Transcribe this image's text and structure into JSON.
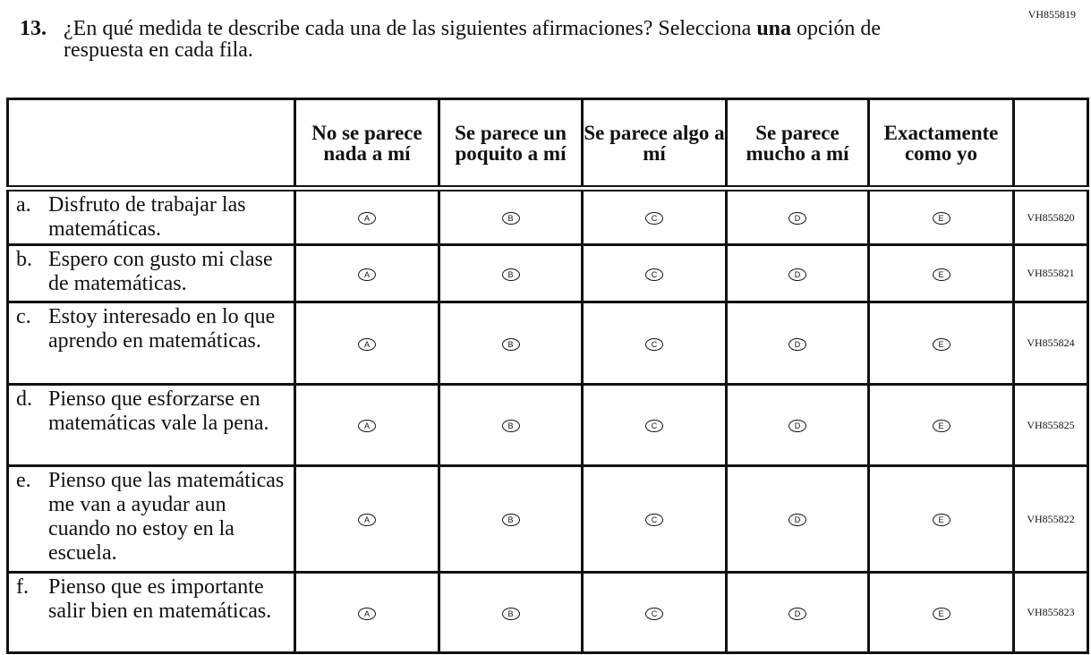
{
  "form_code": "VH855819",
  "question": {
    "number": "13.",
    "text_before": "¿En qué medida te describe cada una de las siguientes afirmaciones? Selecciona ",
    "text_bold": "una",
    "text_after": " opción de respuesta en cada fila."
  },
  "columns": [
    "No se parece nada a mí",
    "Se parece un poquito a mí",
    "Se parece algo a mí",
    "Se parece mucho a mí",
    "Exactamente como yo"
  ],
  "bubble_letters": [
    "A",
    "B",
    "C",
    "D",
    "E"
  ],
  "rows": [
    {
      "letter": "a.",
      "text": "Disfruto de trabajar las matemáticas.",
      "code": "VH855820"
    },
    {
      "letter": "b.",
      "text": "Espero con gusto mi clase de matemáticas.",
      "code": "VH855821"
    },
    {
      "letter": "c.",
      "text": "Estoy interesado en lo que aprendo en matemáticas.",
      "code": "VH855824"
    },
    {
      "letter": "d.",
      "text": "Pienso que esforzarse en matemáticas vale la pena.",
      "code": "VH855825"
    },
    {
      "letter": "e.",
      "text": "Pienso que las matemáticas me van a ayudar aun cuando no estoy en la escuela.",
      "code": "VH855822"
    },
    {
      "letter": "f.",
      "text": "Pienso que es importante salir bien en matemáticas.",
      "code": "VH855823"
    }
  ]
}
